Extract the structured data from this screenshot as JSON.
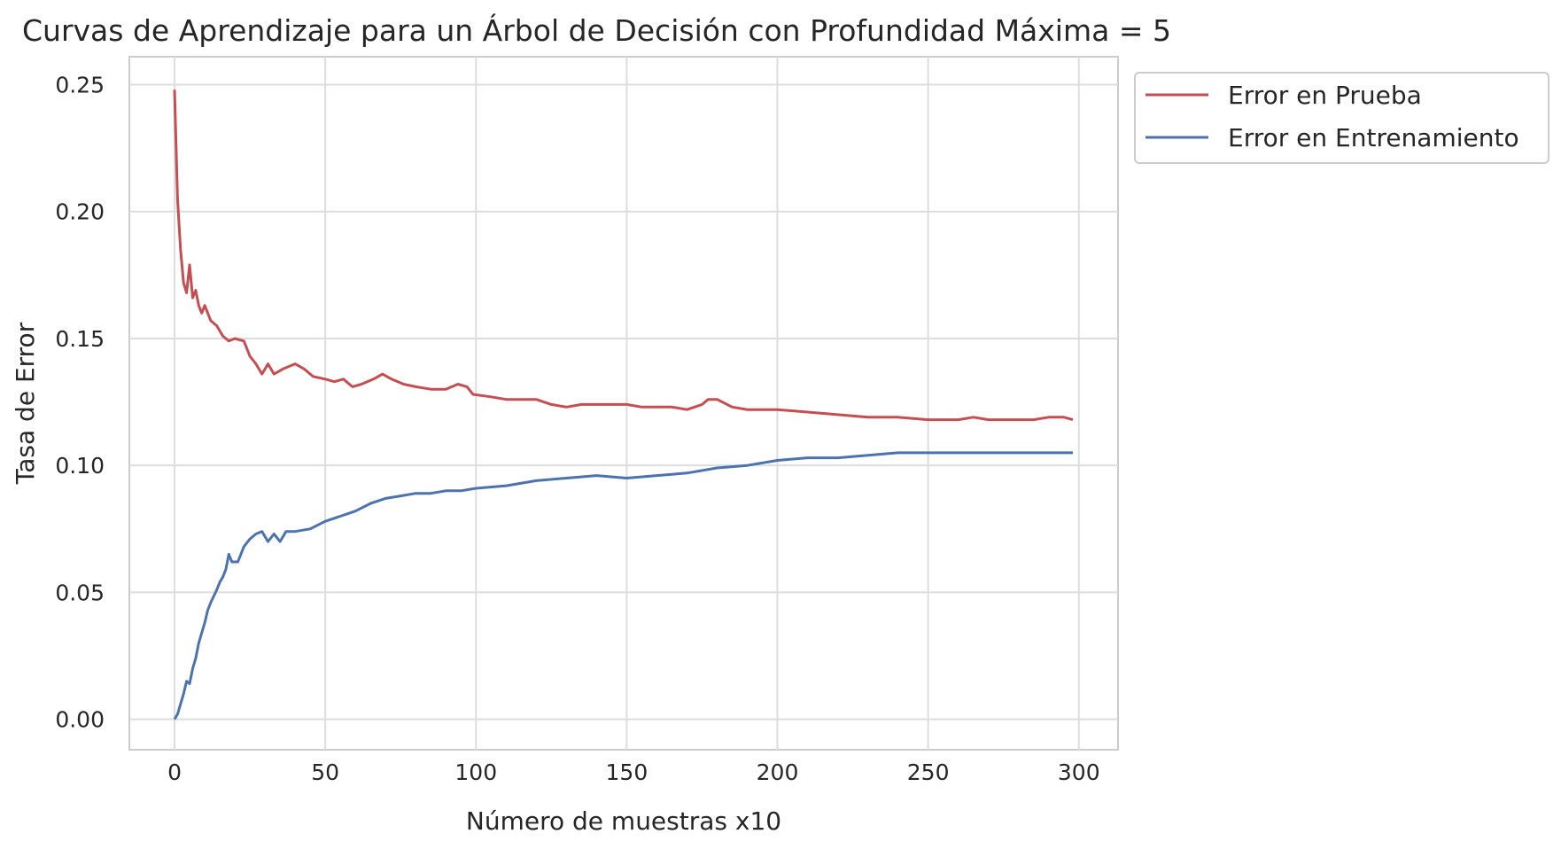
{
  "chart_data": {
    "type": "line",
    "title": "Curvas de Aprendizaje para un Árbol de Decisión con Profundidad Máxima = 5",
    "xlabel": "Número de muestras x10",
    "ylabel": "Tasa de Error",
    "xlim": [
      -15,
      313
    ],
    "ylim": [
      -0.012,
      0.261
    ],
    "xticks": [
      0,
      50,
      100,
      150,
      200,
      250,
      300
    ],
    "yticks": [
      0.0,
      0.05,
      0.1,
      0.15,
      0.2,
      0.25
    ],
    "xtick_labels": [
      "0",
      "50",
      "100",
      "150",
      "200",
      "250",
      "300"
    ],
    "ytick_labels": [
      "0.00",
      "0.05",
      "0.10",
      "0.15",
      "0.20",
      "0.25"
    ],
    "grid": true,
    "legend_position": "outside-top-right",
    "series": [
      {
        "name": "Error en Prueba",
        "color": "#c44e52",
        "points": [
          [
            0,
            0.248
          ],
          [
            1,
            0.205
          ],
          [
            2,
            0.185
          ],
          [
            3,
            0.172
          ],
          [
            4,
            0.168
          ],
          [
            5,
            0.179
          ],
          [
            6,
            0.166
          ],
          [
            7,
            0.169
          ],
          [
            8,
            0.163
          ],
          [
            9,
            0.16
          ],
          [
            10,
            0.163
          ],
          [
            12,
            0.157
          ],
          [
            14,
            0.155
          ],
          [
            16,
            0.151
          ],
          [
            18,
            0.149
          ],
          [
            20,
            0.15
          ],
          [
            23,
            0.149
          ],
          [
            25,
            0.143
          ],
          [
            27,
            0.14
          ],
          [
            29,
            0.136
          ],
          [
            31,
            0.14
          ],
          [
            33,
            0.136
          ],
          [
            36,
            0.138
          ],
          [
            40,
            0.14
          ],
          [
            43,
            0.138
          ],
          [
            46,
            0.135
          ],
          [
            50,
            0.134
          ],
          [
            53,
            0.133
          ],
          [
            56,
            0.134
          ],
          [
            59,
            0.131
          ],
          [
            62,
            0.132
          ],
          [
            66,
            0.134
          ],
          [
            69,
            0.136
          ],
          [
            72,
            0.134
          ],
          [
            76,
            0.132
          ],
          [
            80,
            0.131
          ],
          [
            85,
            0.13
          ],
          [
            90,
            0.13
          ],
          [
            94,
            0.132
          ],
          [
            97,
            0.131
          ],
          [
            99,
            0.128
          ],
          [
            105,
            0.127
          ],
          [
            110,
            0.126
          ],
          [
            115,
            0.126
          ],
          [
            120,
            0.126
          ],
          [
            125,
            0.124
          ],
          [
            130,
            0.123
          ],
          [
            135,
            0.124
          ],
          [
            140,
            0.124
          ],
          [
            150,
            0.124
          ],
          [
            155,
            0.123
          ],
          [
            160,
            0.123
          ],
          [
            165,
            0.123
          ],
          [
            170,
            0.122
          ],
          [
            175,
            0.124
          ],
          [
            177,
            0.126
          ],
          [
            180,
            0.126
          ],
          [
            185,
            0.123
          ],
          [
            190,
            0.122
          ],
          [
            200,
            0.122
          ],
          [
            210,
            0.121
          ],
          [
            220,
            0.12
          ],
          [
            230,
            0.119
          ],
          [
            240,
            0.119
          ],
          [
            250,
            0.118
          ],
          [
            255,
            0.118
          ],
          [
            260,
            0.118
          ],
          [
            265,
            0.119
          ],
          [
            270,
            0.118
          ],
          [
            275,
            0.118
          ],
          [
            280,
            0.118
          ],
          [
            285,
            0.118
          ],
          [
            290,
            0.119
          ],
          [
            295,
            0.119
          ],
          [
            298,
            0.118
          ]
        ]
      },
      {
        "name": "Error en Entrenamiento",
        "color": "#4c72b0",
        "points": [
          [
            0,
            0.0
          ],
          [
            1,
            0.002
          ],
          [
            2,
            0.006
          ],
          [
            3,
            0.01
          ],
          [
            4,
            0.015
          ],
          [
            5,
            0.014
          ],
          [
            6,
            0.02
          ],
          [
            7,
            0.024
          ],
          [
            8,
            0.03
          ],
          [
            9,
            0.034
          ],
          [
            10,
            0.038
          ],
          [
            11,
            0.043
          ],
          [
            12,
            0.046
          ],
          [
            14,
            0.051
          ],
          [
            15,
            0.054
          ],
          [
            16,
            0.056
          ],
          [
            17,
            0.059
          ],
          [
            18,
            0.065
          ],
          [
            19,
            0.062
          ],
          [
            21,
            0.062
          ],
          [
            23,
            0.068
          ],
          [
            25,
            0.071
          ],
          [
            27,
            0.073
          ],
          [
            29,
            0.074
          ],
          [
            31,
            0.07
          ],
          [
            33,
            0.073
          ],
          [
            35,
            0.07
          ],
          [
            37,
            0.074
          ],
          [
            40,
            0.074
          ],
          [
            45,
            0.075
          ],
          [
            50,
            0.078
          ],
          [
            55,
            0.08
          ],
          [
            60,
            0.082
          ],
          [
            65,
            0.085
          ],
          [
            70,
            0.087
          ],
          [
            75,
            0.088
          ],
          [
            80,
            0.089
          ],
          [
            85,
            0.089
          ],
          [
            90,
            0.09
          ],
          [
            95,
            0.09
          ],
          [
            100,
            0.091
          ],
          [
            110,
            0.092
          ],
          [
            120,
            0.094
          ],
          [
            130,
            0.095
          ],
          [
            140,
            0.096
          ],
          [
            150,
            0.095
          ],
          [
            160,
            0.096
          ],
          [
            170,
            0.097
          ],
          [
            180,
            0.099
          ],
          [
            190,
            0.1
          ],
          [
            200,
            0.102
          ],
          [
            210,
            0.103
          ],
          [
            220,
            0.103
          ],
          [
            230,
            0.104
          ],
          [
            240,
            0.105
          ],
          [
            250,
            0.105
          ],
          [
            260,
            0.105
          ],
          [
            270,
            0.105
          ],
          [
            280,
            0.105
          ],
          [
            290,
            0.105
          ],
          [
            298,
            0.105
          ]
        ]
      }
    ]
  }
}
